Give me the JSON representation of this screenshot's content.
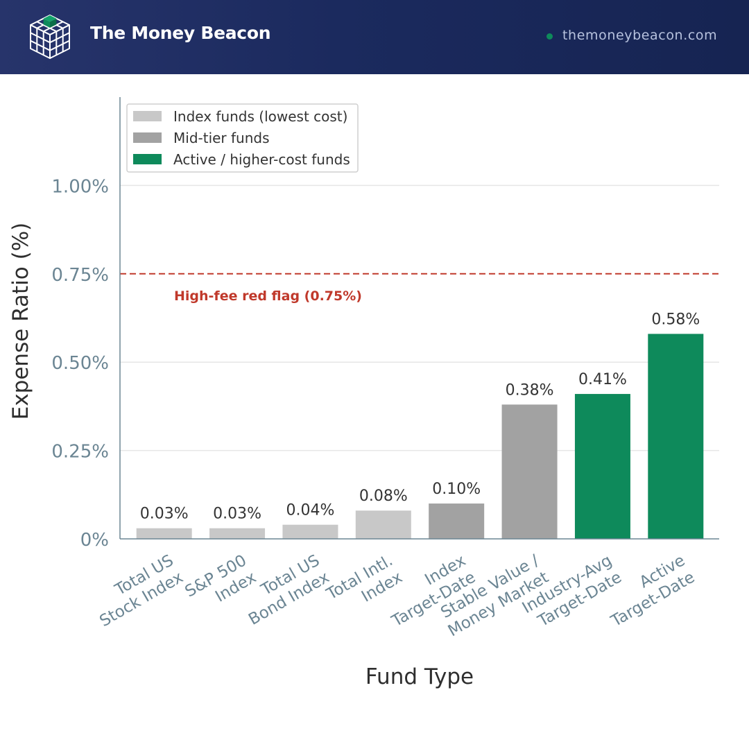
{
  "header": {
    "brand_name": "The Money Beacon",
    "site_url": "themoneybeacon.com",
    "logo_icon": "cube-grid-icon"
  },
  "colors": {
    "header_bg": "#1b2a5e",
    "index": "#c8c8c8",
    "mid": "#a2a2a2",
    "active": "#0e8a5b",
    "red_flag": "#c0392b",
    "axis": "#6b8593"
  },
  "chart_data": {
    "type": "bar",
    "xlabel": "Fund Type",
    "ylabel": "Expense Ratio (%)",
    "ylim": [
      0,
      1.25
    ],
    "yticks": [
      0,
      0.25,
      0.5,
      0.75,
      1.0
    ],
    "ytick_labels": [
      "0%",
      "0.25%",
      "0.50%",
      "0.75%",
      "1.00%"
    ],
    "grid": "horizontal",
    "legend_position": "top-left",
    "legend": [
      {
        "key": "index",
        "label": "Index funds (lowest cost)"
      },
      {
        "key": "mid",
        "label": "Mid-tier funds"
      },
      {
        "key": "active",
        "label": "Active / higher-cost funds"
      }
    ],
    "categories": [
      [
        "Total US",
        "Stock Index"
      ],
      [
        "S&P 500",
        "Index"
      ],
      [
        "Total US",
        "Bond Index"
      ],
      [
        "Total Intl.",
        "Index"
      ],
      [
        "Index",
        "Target-Date"
      ],
      [
        "Stable Value /",
        "Money Market"
      ],
      [
        "Industry-Avg",
        "Target-Date"
      ],
      [
        "Active",
        "Target-Date"
      ]
    ],
    "values": [
      0.03,
      0.03,
      0.04,
      0.08,
      0.1,
      0.38,
      0.41,
      0.58
    ],
    "value_labels": [
      "0.03%",
      "0.03%",
      "0.04%",
      "0.08%",
      "0.10%",
      "0.38%",
      "0.41%",
      "0.58%"
    ],
    "groups": [
      "index",
      "index",
      "index",
      "index",
      "mid",
      "mid",
      "active",
      "active"
    ],
    "reference_line": {
      "value": 0.75,
      "label": "High-fee red flag (0.75%)"
    }
  }
}
